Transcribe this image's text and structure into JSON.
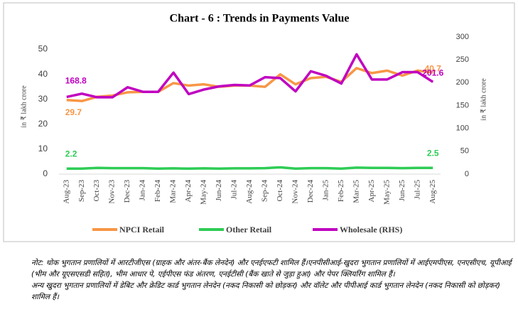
{
  "chart_data": {
    "type": "line",
    "title": "Chart - 6 : Trends in Payments Value",
    "y_label": "in ₹ lakh crore",
    "y2_label": "in ₹ lakh crore",
    "categories": [
      "Aug-23",
      "Sep-23",
      "Oct-23",
      "Nov-23",
      "Dec-23",
      "Jan-24",
      "Feb-24",
      "Mar-24",
      "Apr-24",
      "May-24",
      "Jun-24",
      "Jul-24",
      "Aug-24",
      "Sep-24",
      "Oct-24",
      "Nov-24",
      "Dec-24",
      "Jan-25",
      "Feb-25",
      "Mar-25",
      "Apr-25",
      "May-25",
      "Jun-25",
      "Jul-25",
      "Aug-25"
    ],
    "series": [
      {
        "name": "NPCI Retail",
        "color": "#f79646",
        "values": [
          29.7,
          29.3,
          31,
          31.5,
          32.8,
          33,
          33,
          36.5,
          35.5,
          36,
          35,
          35.5,
          35.5,
          35,
          40,
          36,
          38.5,
          39,
          37,
          42.5,
          40.5,
          41.5,
          39.5,
          41.5,
          40.7
        ]
      },
      {
        "name": "Other Retail",
        "color": "#2ecc55",
        "values": [
          2.2,
          2.2,
          2.5,
          2.4,
          2.4,
          2.4,
          2.2,
          2.3,
          2.2,
          2.3,
          2.2,
          2.3,
          2.3,
          2.4,
          2.7,
          2.2,
          2.4,
          2.4,
          2.2,
          2.6,
          2.5,
          2.5,
          2.4,
          2.5,
          2.5
        ]
      },
      {
        "name": "Wholesale (RHS)",
        "color": "#c000c0",
        "axis": "y2",
        "values": [
          168.8,
          176,
          168,
          168,
          190,
          180,
          180,
          222,
          175,
          185,
          192,
          195,
          194,
          212,
          210,
          181,
          225,
          215,
          198,
          262,
          207,
          207,
          223,
          223,
          201.6
        ]
      }
    ],
    "ylim": [
      0,
      55
    ],
    "yticks": [
      0,
      10,
      20,
      30,
      40,
      50
    ],
    "y2lim": [
      0,
      300
    ],
    "y2ticks": [
      0,
      50,
      100,
      150,
      200,
      250,
      300
    ]
  },
  "note": [
    "नोट: थोक भुगतान प्रणालियों में आरटीजीएस (ग्राहक और अंतर-बैंक लेनदेन) और एनईएफटी शामिल हैं।एनपीसीआई-खुदरा भुगतान प्रणालियों में आईएमपीएस, एनएसीएच, यूपीआई (भीम और यूएसएसडी सहित), भीम आधार पे, एईपीएस फंड अंतरण, एनईटीसी (बैंक खाते से जुड़ा हुआ) और पेपर क्लियरिंग शामिल हैं।",
    "अन्य खुदरा भुगतान प्रणालियों में डेबिट और क्रेडिट कार्ड भुगतान लेनदेन (नकद निकासी को छोड़कर) और वॉलेट और पीपीआई कार्ड भुगतान लेनदेन (नकद निकासी को छोड़कर) शामिल हैं।"
  ]
}
